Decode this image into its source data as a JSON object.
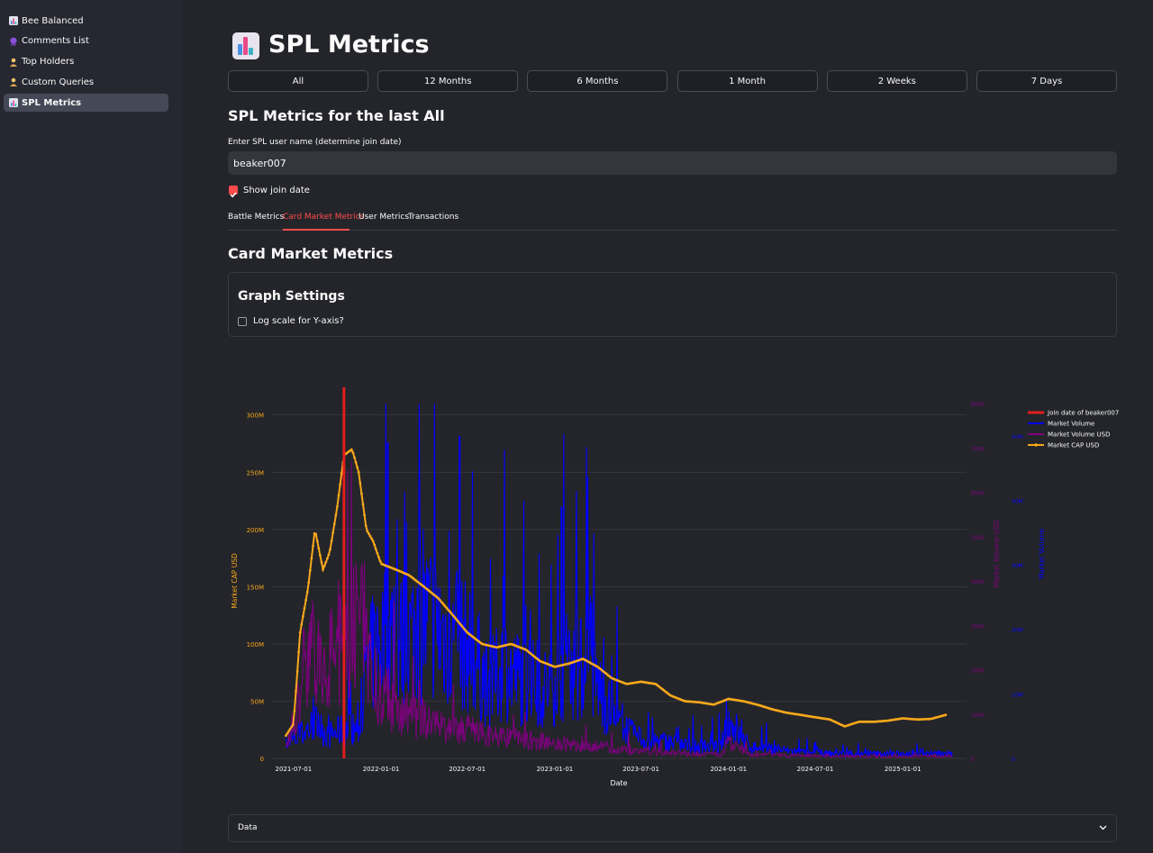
{
  "sidebar": {
    "items": [
      {
        "label": "Bee Balanced",
        "icon": "bar-chart-icon"
      },
      {
        "label": "Comments List",
        "icon": "crystal-ball-icon"
      },
      {
        "label": "Top Holders",
        "icon": "person-icon"
      },
      {
        "label": "Custom Queries",
        "icon": "person-icon"
      },
      {
        "label": "SPL Metrics",
        "icon": "bar-chart-icon",
        "active": true
      }
    ]
  },
  "page": {
    "title": "SPL Metrics",
    "title_icon": "bar-chart-icon"
  },
  "period_buttons": [
    "All",
    "12 Months",
    "6 Months",
    "1 Month",
    "2 Weeks",
    "7 Days"
  ],
  "subheader": "SPL Metrics for the last All",
  "username": {
    "label": "Enter SPL user name (determine join date)",
    "value": "beaker007"
  },
  "show_join": {
    "label": "Show join date",
    "checked": true
  },
  "tabs": {
    "items": [
      "Battle Metrics",
      "Card Market Metrics",
      "User Metrics",
      "Transactions"
    ],
    "active_index": 1
  },
  "section_title": "Card Market Metrics",
  "graph_settings": {
    "title": "Graph Settings",
    "log_label": "Log scale for Y-axis?",
    "log_checked": false
  },
  "data_expander": {
    "label": "Data",
    "icon": "chevron-down-icon"
  },
  "colors": {
    "join": "#e11d1d",
    "volume": "#0000ff",
    "volume_usd": "#800080",
    "cap": "#f7a81b",
    "accent": "#ff4b4b"
  },
  "chart_data": {
    "type": "line",
    "xlabel": "Date",
    "x_ticks": [
      "2021-07-01",
      "2022-01-01",
      "2022-07-01",
      "2023-01-01",
      "2023-07-01",
      "2024-01-01",
      "2024-07-01",
      "2025-01-01"
    ],
    "x_range": [
      "2021-05-15",
      "2025-05-15"
    ],
    "y_left": {
      "label": "Market CAP USD",
      "range": [
        0,
        310000000
      ],
      "ticks": [
        "0",
        "50M",
        "100M",
        "150M",
        "200M",
        "250M",
        "300M"
      ]
    },
    "y_right_usd": {
      "label": "Market Volume USD",
      "range": [
        0,
        800000
      ],
      "ticks": [
        "0",
        "100k",
        "200k",
        "300k",
        "400k",
        "500k",
        "600k",
        "700k",
        "800k"
      ]
    },
    "y_right_volume": {
      "label": "Market Volume",
      "range": [
        0,
        55000000
      ],
      "ticks": [
        "0",
        "10M",
        "20M",
        "30M",
        "40M",
        "50M"
      ]
    },
    "grid": true,
    "legend_position": "top-right",
    "join_date": "2021-10-15",
    "series": [
      {
        "name": "Join date of beaker007",
        "type": "vline"
      },
      {
        "name": "Market Volume",
        "axis": "y_right_volume",
        "x": [
          "2021-06-15",
          "2021-07-15",
          "2021-08-15",
          "2021-09-15",
          "2021-10-15",
          "2021-11-15",
          "2021-12-01",
          "2021-12-15",
          "2022-01-15",
          "2022-02-15",
          "2022-03-15",
          "2022-04-15",
          "2022-05-15",
          "2022-06-15",
          "2022-07-15",
          "2022-08-15",
          "2022-09-15",
          "2022-10-15",
          "2022-11-15",
          "2022-12-15",
          "2023-01-15",
          "2023-02-15",
          "2023-03-15",
          "2023-04-15",
          "2023-05-15",
          "2023-06-15",
          "2023-07-15",
          "2023-08-15",
          "2023-09-15",
          "2023-10-15",
          "2023-11-15",
          "2023-12-15",
          "2024-01-01",
          "2024-02-15",
          "2024-04-15",
          "2024-06-15",
          "2024-08-15",
          "2024-10-15",
          "2024-12-15",
          "2025-03-01",
          "2025-04-15"
        ],
        "values": [
          2,
          4,
          6,
          4,
          5,
          5,
          14,
          18,
          22,
          20,
          22,
          24,
          21,
          20,
          18,
          12,
          16,
          14,
          13,
          12,
          16,
          15,
          16,
          10,
          6,
          4,
          3,
          3,
          2.5,
          2,
          2,
          2,
          6,
          2,
          1.5,
          1,
          0.8,
          0.8,
          0.8,
          0.8,
          0.8
        ],
        "peaks": {
          "2022-06-15": 50,
          "2022-01-15": 49,
          "2023-01-15": 39
        }
      },
      {
        "name": "Market Volume USD",
        "axis": "y_right_usd",
        "x": [
          "2021-06-15",
          "2021-07-15",
          "2021-08-01",
          "2021-08-15",
          "2021-09-15",
          "2021-10-15",
          "2021-11-01",
          "2021-11-15",
          "2021-12-15",
          "2022-01-15",
          "2022-02-15",
          "2022-03-15",
          "2022-04-15",
          "2022-05-15",
          "2022-06-15",
          "2022-07-15",
          "2022-08-15",
          "2022-09-15",
          "2022-10-15",
          "2022-11-15",
          "2022-12-15",
          "2023-01-15",
          "2023-02-15",
          "2023-03-15",
          "2023-04-15",
          "2023-05-15",
          "2023-06-15",
          "2023-07-15",
          "2023-08-15",
          "2023-09-15",
          "2023-10-15",
          "2023-11-15",
          "2023-12-15",
          "2024-01-01",
          "2024-02-15",
          "2024-04-15",
          "2024-07-15",
          "2024-10-15",
          "2025-01-15",
          "2025-04-15"
        ],
        "values": [
          20000,
          150000,
          300000,
          220000,
          250000,
          280000,
          300000,
          350000,
          200000,
          150000,
          120000,
          100000,
          90000,
          80000,
          70000,
          70000,
          60000,
          50000,
          50000,
          45000,
          40000,
          40000,
          35000,
          30000,
          30000,
          25000,
          15000,
          20000,
          15000,
          15000,
          10000,
          10000,
          10000,
          40000,
          10000,
          8000,
          6000,
          5000,
          5000,
          5000
        ]
      },
      {
        "name": "Market CAP USD",
        "axis": "y_left",
        "x": [
          "2021-06-15",
          "2021-07-01",
          "2021-07-15",
          "2021-08-01",
          "2021-08-15",
          "2021-09-01",
          "2021-09-15",
          "2021-10-01",
          "2021-10-15",
          "2021-11-01",
          "2021-11-15",
          "2021-12-01",
          "2021-12-15",
          "2022-01-01",
          "2022-02-01",
          "2022-03-01",
          "2022-04-01",
          "2022-05-01",
          "2022-06-01",
          "2022-07-01",
          "2022-08-01",
          "2022-09-01",
          "2022-10-01",
          "2022-11-01",
          "2022-12-01",
          "2023-01-01",
          "2023-02-01",
          "2023-03-01",
          "2023-04-01",
          "2023-05-01",
          "2023-06-01",
          "2023-07-01",
          "2023-08-01",
          "2023-09-01",
          "2023-10-01",
          "2023-11-01",
          "2023-12-01",
          "2024-01-01",
          "2024-02-01",
          "2024-03-01",
          "2024-04-01",
          "2024-05-01",
          "2024-06-01",
          "2024-07-01",
          "2024-08-01",
          "2024-09-01",
          "2024-10-01",
          "2024-11-01",
          "2024-12-01",
          "2025-01-01",
          "2025-02-01",
          "2025-03-01",
          "2025-04-01"
        ],
        "values": [
          20000000,
          30000000,
          110000000,
          150000000,
          200000000,
          165000000,
          180000000,
          220000000,
          265000000,
          270000000,
          250000000,
          200000000,
          190000000,
          170000000,
          165000000,
          160000000,
          150000000,
          140000000,
          125000000,
          110000000,
          100000000,
          97000000,
          100000000,
          95000000,
          85000000,
          80000000,
          83000000,
          87000000,
          80000000,
          70000000,
          65000000,
          67000000,
          65000000,
          55000000,
          50000000,
          49000000,
          47000000,
          52000000,
          50000000,
          47000000,
          43000000,
          40000000,
          38000000,
          36000000,
          34000000,
          28000000,
          32000000,
          32000000,
          33000000,
          35000000,
          34000000,
          34500000,
          38000000
        ]
      }
    ]
  }
}
